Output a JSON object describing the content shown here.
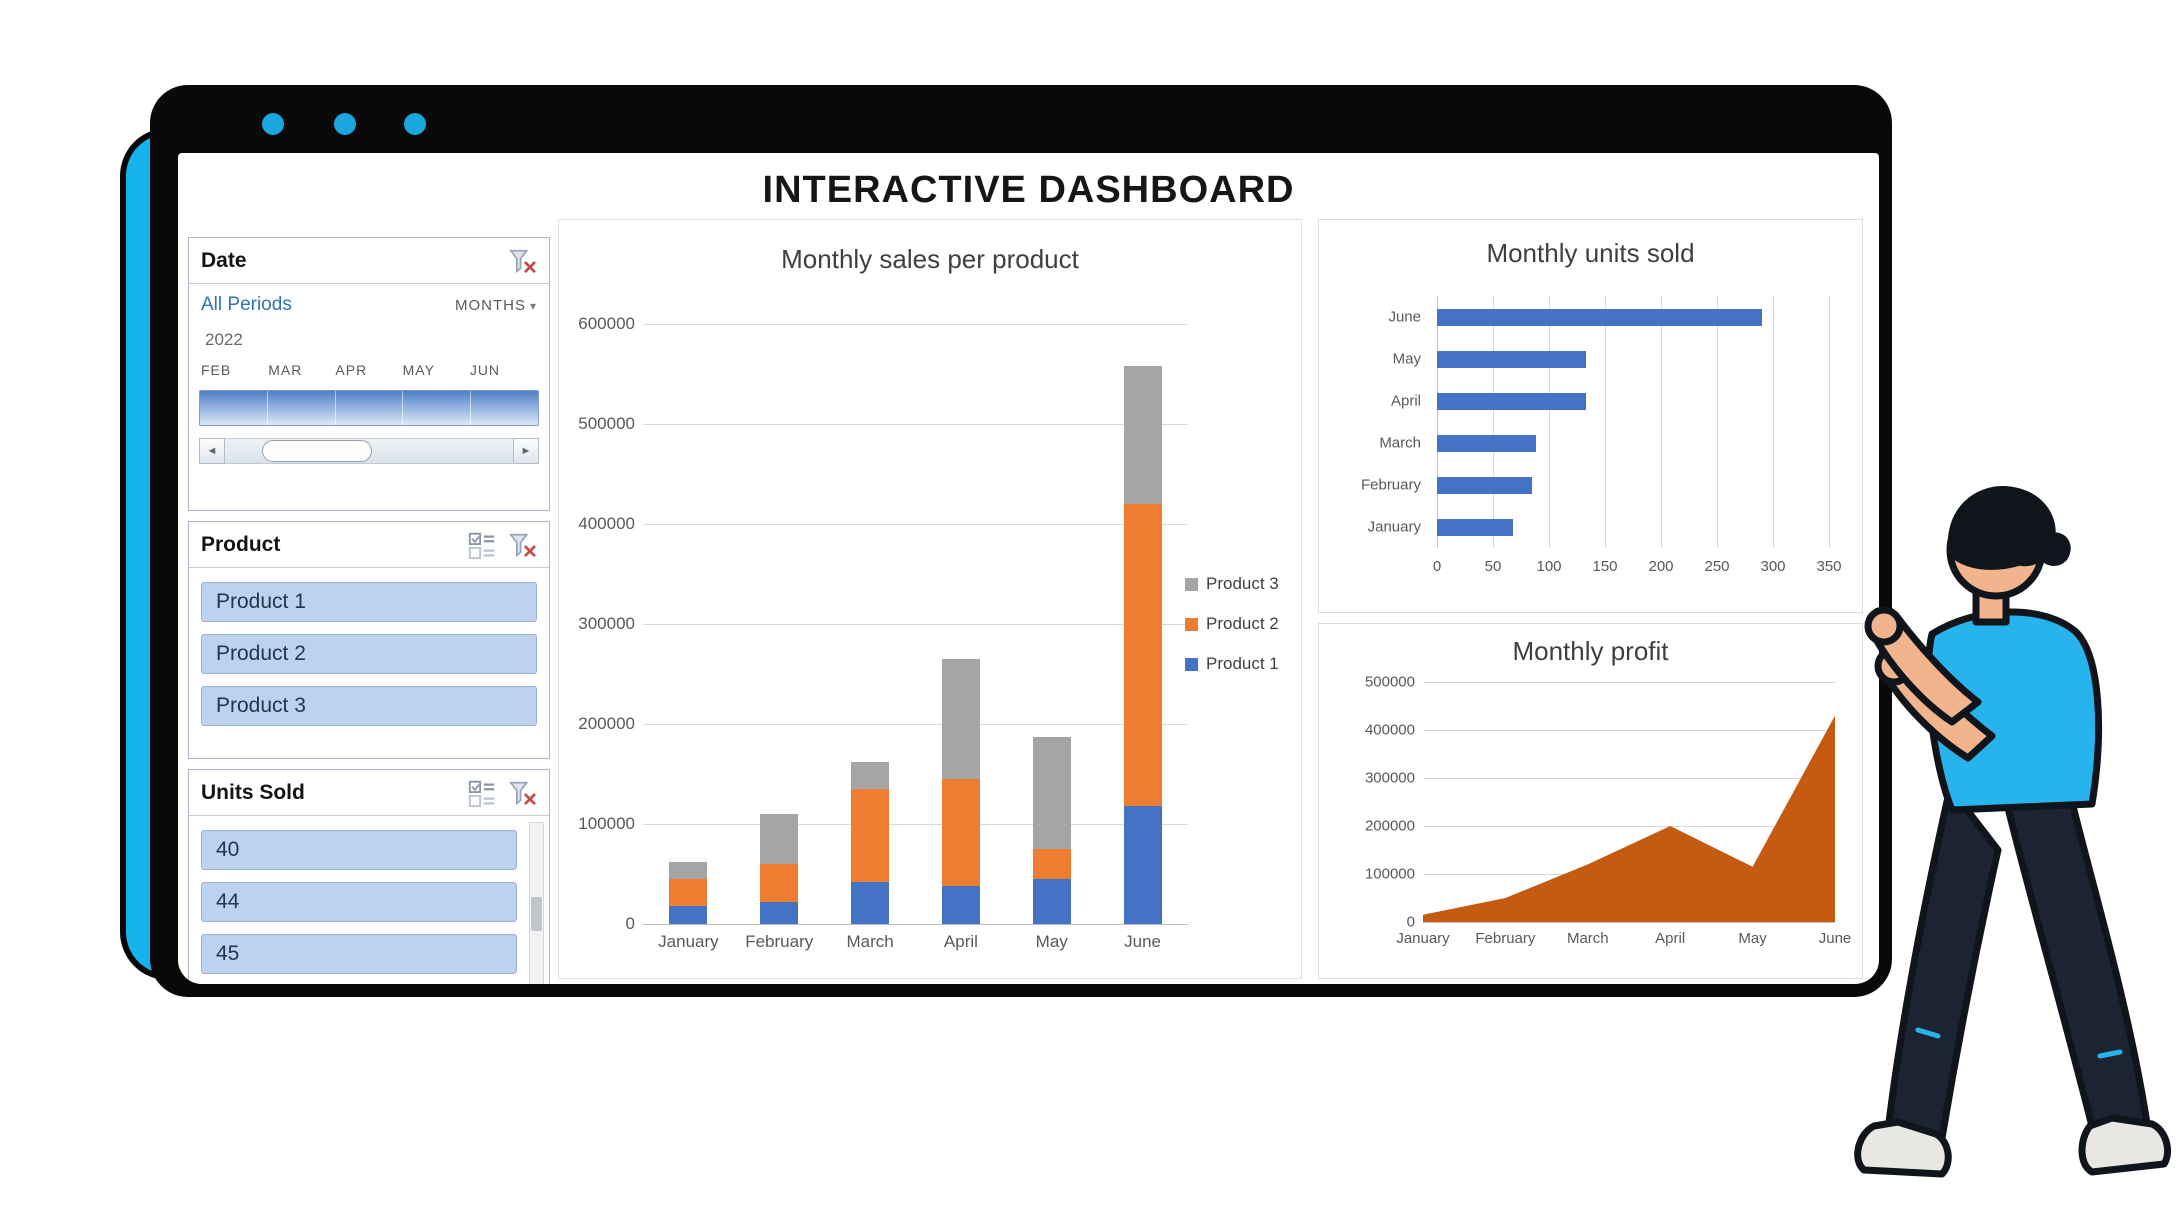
{
  "window": {
    "title": "INTERACTIVE DASHBOARD"
  },
  "icons": {
    "dropdown_arrow": "▾",
    "scroll_left": "◄",
    "scroll_right": "►"
  },
  "slicers": {
    "date": {
      "label": "Date",
      "selection": "All Periods",
      "granularity": "MONTHS",
      "year": "2022",
      "months": [
        "FEB",
        "MAR",
        "APR",
        "MAY",
        "JUN"
      ]
    },
    "product": {
      "label": "Product",
      "items": [
        "Product 1",
        "Product 2",
        "Product 3"
      ]
    },
    "units_sold": {
      "label": "Units Sold",
      "items": [
        "40",
        "44",
        "45"
      ]
    }
  },
  "chart_data": [
    {
      "type": "bar",
      "variant": "stacked-column",
      "title": "Monthly sales per product",
      "categories": [
        "January",
        "February",
        "March",
        "April",
        "May",
        "June"
      ],
      "series": [
        {
          "name": "Product 1",
          "color": "#4472C4",
          "values": [
            18000,
            22000,
            42000,
            38000,
            45000,
            118000
          ]
        },
        {
          "name": "Product 2",
          "color": "#ED7D31",
          "values": [
            27000,
            38000,
            93000,
            107000,
            30000,
            302000
          ]
        },
        {
          "name": "Product 3",
          "color": "#A5A5A5",
          "values": [
            17000,
            50000,
            27000,
            120000,
            112000,
            138000
          ]
        }
      ],
      "ylim": [
        0,
        600000
      ],
      "ytick_step": 100000,
      "grid": "horizontal",
      "legend": {
        "position": "right",
        "entries_top_to_bottom": [
          "Product 3",
          "Product 2",
          "Product 1"
        ]
      }
    },
    {
      "type": "bar",
      "variant": "horizontal",
      "title": "Monthly units sold",
      "categories": [
        "June",
        "May",
        "April",
        "March",
        "February",
        "January"
      ],
      "values": [
        290,
        133,
        133,
        88,
        85,
        68
      ],
      "color": "#4472C4",
      "xlim": [
        0,
        350
      ],
      "xtick_step": 50,
      "grid": "vertical",
      "legend": "none"
    },
    {
      "type": "area",
      "title": "Monthly profit",
      "categories": [
        "January",
        "February",
        "March",
        "April",
        "May",
        "June"
      ],
      "values": [
        15000,
        50000,
        120000,
        200000,
        115000,
        430000
      ],
      "color": "#C55A11",
      "ylim": [
        0,
        500000
      ],
      "ytick_step": 100000,
      "grid": "horizontal",
      "legend": "none"
    }
  ],
  "colors": {
    "accent_cyan": "#14B3EC",
    "window_frame": "#090909",
    "dot_blue": "#1BA6DF",
    "bar_blue": "#4472C4",
    "bar_orange": "#ED7D31",
    "bar_gray": "#A5A5A5",
    "area_orange": "#C55A11",
    "slicer_item_bg": "#BCD2EE"
  }
}
